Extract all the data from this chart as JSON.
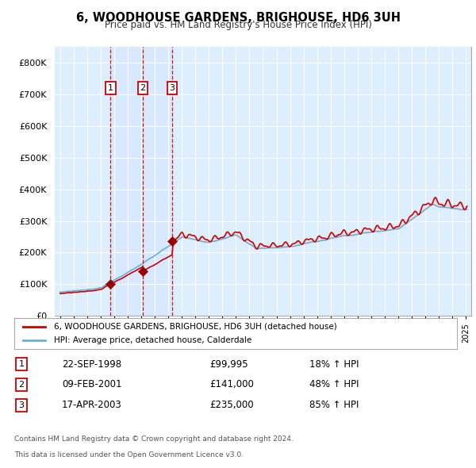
{
  "title": "6, WOODHOUSE GARDENS, BRIGHOUSE, HD6 3UH",
  "subtitle": "Price paid vs. HM Land Registry's House Price Index (HPI)",
  "background_color": "#ffffff",
  "plot_bg_color": "#ddeeff",
  "grid_color": "#ffffff",
  "legend_line1": "6, WOODHOUSE GARDENS, BRIGHOUSE, HD6 3UH (detached house)",
  "legend_line2": "HPI: Average price, detached house, Calderdale",
  "purchases": [
    {
      "label": "1",
      "date": "22-SEP-1998",
      "price": "£99,995",
      "pct": "18% ↑ HPI",
      "x_year": 1998.73,
      "y_val": 99995
    },
    {
      "label": "2",
      "date": "09-FEB-2001",
      "price": "£141,000",
      "pct": "48% ↑ HPI",
      "x_year": 2001.11,
      "y_val": 141000
    },
    {
      "label": "3",
      "date": "17-APR-2003",
      "price": "£235,000",
      "pct": "85% ↑ HPI",
      "x_year": 2003.29,
      "y_val": 235000
    }
  ],
  "footer1": "Contains HM Land Registry data © Crown copyright and database right 2024.",
  "footer2": "This data is licensed under the Open Government Licence v3.0.",
  "hpi_color": "#6baed6",
  "price_color": "#cc0000",
  "vline_color": "#cc0000",
  "label_box_color": "#cc0000",
  "ylim_max": 850000,
  "ylim_min": 0,
  "xlim_min": 1994.6,
  "xlim_max": 2025.4
}
